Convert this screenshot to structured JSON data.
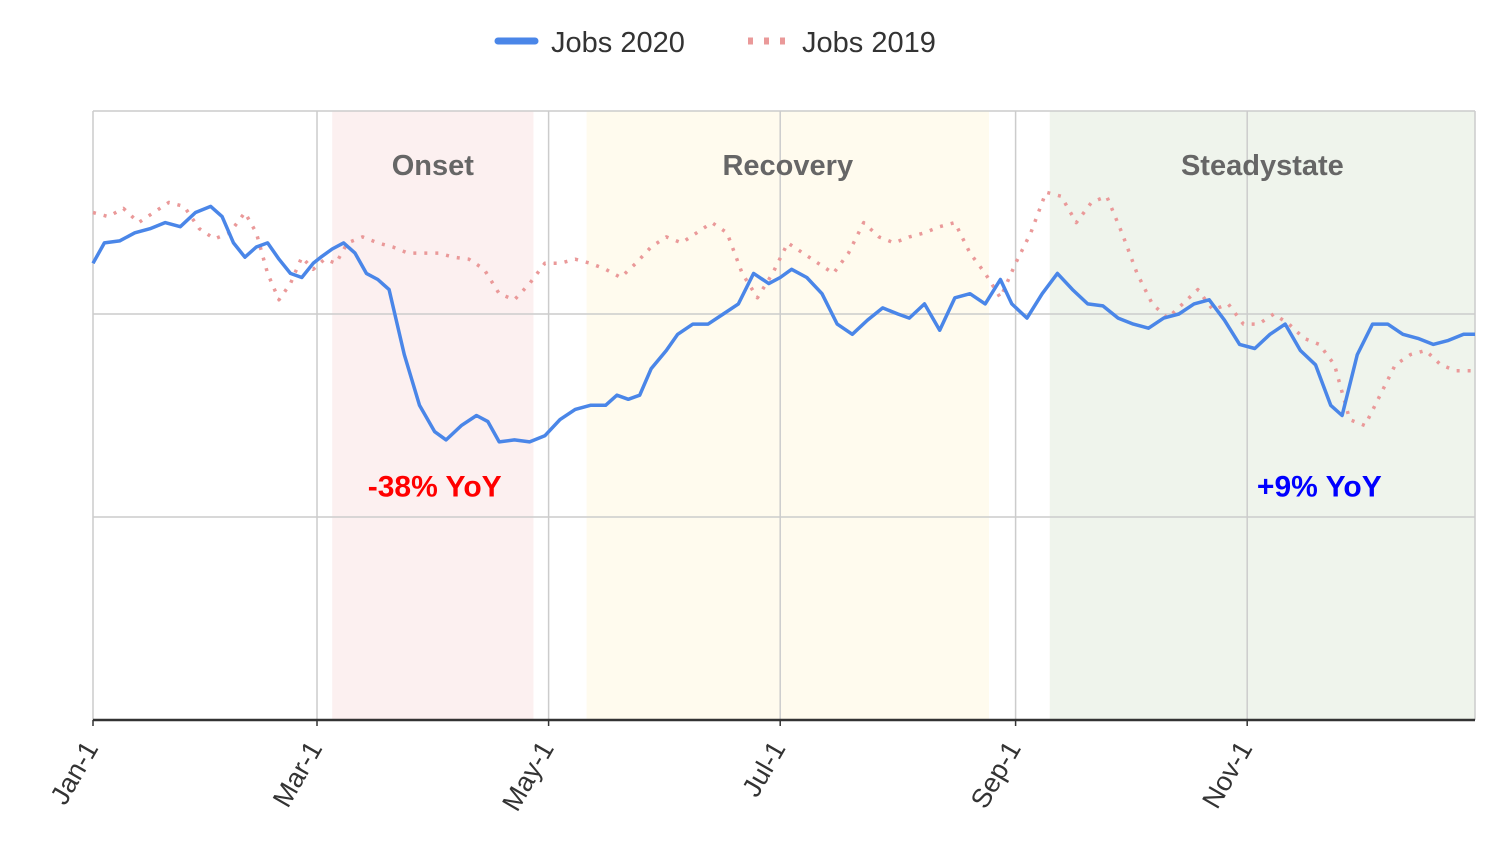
{
  "chart_data": {
    "type": "line",
    "title": "",
    "xlabel": "",
    "ylabel": "",
    "x_range": [
      "Jan-1",
      "Dec-31"
    ],
    "y_range": [
      0,
      3
    ],
    "x_ticks": [
      "Jan-1",
      "Mar-1",
      "May-1",
      "Jul-1",
      "Sep-1",
      "Nov-1"
    ],
    "y_ticks": [],
    "grid": true,
    "legend": "top-center",
    "bands": [
      {
        "label": "Onset",
        "start": "Mar-5",
        "end": "Apr-27",
        "color": "#fcf0f0"
      },
      {
        "label": "Recovery",
        "start": "May-11",
        "end": "Aug-25",
        "color": "#fffbee"
      },
      {
        "label": "Steadystate",
        "start": "Sep-10",
        "end": "Dec-31",
        "color": "#eff4ec"
      }
    ],
    "annotations": [
      {
        "text": "-38% YoY",
        "x": "Apr-1",
        "y": 1.1,
        "color": "#ff0000"
      },
      {
        "text": "+9% YoY",
        "x": "Nov-20",
        "y": 1.1,
        "color": "#0000ff"
      }
    ],
    "series": [
      {
        "name": "Jobs 2020",
        "style": "solid",
        "color": "#4a86e8",
        "points": [
          [
            "Jan-1",
            2.25
          ],
          [
            "Jan-4",
            2.35
          ],
          [
            "Jan-8",
            2.36
          ],
          [
            "Jan-12",
            2.4
          ],
          [
            "Jan-16",
            2.42
          ],
          [
            "Jan-20",
            2.45
          ],
          [
            "Jan-24",
            2.43
          ],
          [
            "Jan-28",
            2.5
          ],
          [
            "Feb-1",
            2.53
          ],
          [
            "Feb-4",
            2.48
          ],
          [
            "Feb-7",
            2.35
          ],
          [
            "Feb-10",
            2.28
          ],
          [
            "Feb-13",
            2.33
          ],
          [
            "Feb-16",
            2.35
          ],
          [
            "Feb-19",
            2.27
          ],
          [
            "Feb-22",
            2.2
          ],
          [
            "Feb-25",
            2.18
          ],
          [
            "Feb-28",
            2.25
          ],
          [
            "Mar-2",
            2.28
          ],
          [
            "Mar-5",
            2.32
          ],
          [
            "Mar-8",
            2.35
          ],
          [
            "Mar-11",
            2.3
          ],
          [
            "Mar-14",
            2.2
          ],
          [
            "Mar-17",
            2.17
          ],
          [
            "Mar-20",
            2.12
          ],
          [
            "Mar-24",
            1.8
          ],
          [
            "Mar-28",
            1.55
          ],
          [
            "Apr-1",
            1.42
          ],
          [
            "Apr-4",
            1.38
          ],
          [
            "Apr-8",
            1.45
          ],
          [
            "Apr-12",
            1.5
          ],
          [
            "Apr-15",
            1.47
          ],
          [
            "Apr-18",
            1.37
          ],
          [
            "Apr-22",
            1.38
          ],
          [
            "Apr-26",
            1.37
          ],
          [
            "Apr-30",
            1.4
          ],
          [
            "May-4",
            1.48
          ],
          [
            "May-8",
            1.53
          ],
          [
            "May-12",
            1.55
          ],
          [
            "May-16",
            1.55
          ],
          [
            "May-19",
            1.6
          ],
          [
            "May-22",
            1.58
          ],
          [
            "May-25",
            1.6
          ],
          [
            "May-28",
            1.73
          ],
          [
            "Jun-1",
            1.82
          ],
          [
            "Jun-4",
            1.9
          ],
          [
            "Jun-8",
            1.95
          ],
          [
            "Jun-12",
            1.95
          ],
          [
            "Jun-16",
            2.0
          ],
          [
            "Jun-20",
            2.05
          ],
          [
            "Jun-24",
            2.2
          ],
          [
            "Jun-28",
            2.15
          ],
          [
            "Jul-1",
            2.18
          ],
          [
            "Jul-4",
            2.22
          ],
          [
            "Jul-8",
            2.18
          ],
          [
            "Jul-12",
            2.1
          ],
          [
            "Jul-16",
            1.95
          ],
          [
            "Jul-20",
            1.9
          ],
          [
            "Jul-24",
            1.97
          ],
          [
            "Jul-28",
            2.03
          ],
          [
            "Aug-1",
            2.0
          ],
          [
            "Aug-4",
            1.98
          ],
          [
            "Aug-8",
            2.05
          ],
          [
            "Aug-12",
            1.92
          ],
          [
            "Aug-16",
            2.08
          ],
          [
            "Aug-20",
            2.1
          ],
          [
            "Aug-24",
            2.05
          ],
          [
            "Aug-28",
            2.17
          ],
          [
            "Aug-31",
            2.05
          ],
          [
            "Sep-4",
            1.98
          ],
          [
            "Sep-8",
            2.1
          ],
          [
            "Sep-12",
            2.2
          ],
          [
            "Sep-16",
            2.12
          ],
          [
            "Sep-20",
            2.05
          ],
          [
            "Sep-24",
            2.04
          ],
          [
            "Sep-28",
            1.98
          ],
          [
            "Oct-2",
            1.95
          ],
          [
            "Oct-6",
            1.93
          ],
          [
            "Oct-10",
            1.98
          ],
          [
            "Oct-14",
            2.0
          ],
          [
            "Oct-18",
            2.05
          ],
          [
            "Oct-22",
            2.07
          ],
          [
            "Oct-26",
            1.97
          ],
          [
            "Oct-30",
            1.85
          ],
          [
            "Nov-3",
            1.83
          ],
          [
            "Nov-7",
            1.9
          ],
          [
            "Nov-11",
            1.95
          ],
          [
            "Nov-15",
            1.82
          ],
          [
            "Nov-19",
            1.75
          ],
          [
            "Nov-23",
            1.55
          ],
          [
            "Nov-26",
            1.5
          ],
          [
            "Nov-30",
            1.8
          ],
          [
            "Dec-4",
            1.95
          ],
          [
            "Dec-8",
            1.95
          ],
          [
            "Dec-12",
            1.9
          ],
          [
            "Dec-16",
            1.88
          ],
          [
            "Dec-20",
            1.85
          ],
          [
            "Dec-24",
            1.87
          ],
          [
            "Dec-28",
            1.9
          ],
          [
            "Dec-31",
            1.9
          ]
        ]
      },
      {
        "name": "Jobs 2019",
        "style": "dotted",
        "color": "#ea9999",
        "points": [
          [
            "Jan-1",
            2.5
          ],
          [
            "Jan-5",
            2.48
          ],
          [
            "Jan-9",
            2.52
          ],
          [
            "Jan-13",
            2.45
          ],
          [
            "Jan-17",
            2.5
          ],
          [
            "Jan-21",
            2.55
          ],
          [
            "Jan-25",
            2.53
          ],
          [
            "Jan-29",
            2.42
          ],
          [
            "Feb-2",
            2.37
          ],
          [
            "Feb-6",
            2.4
          ],
          [
            "Feb-10",
            2.5
          ],
          [
            "Feb-13",
            2.4
          ],
          [
            "Feb-16",
            2.2
          ],
          [
            "Feb-19",
            2.07
          ],
          [
            "Feb-22",
            2.15
          ],
          [
            "Feb-25",
            2.28
          ],
          [
            "Feb-28",
            2.22
          ],
          [
            "Mar-3",
            2.27
          ],
          [
            "Mar-6",
            2.25
          ],
          [
            "Mar-9",
            2.35
          ],
          [
            "Mar-13",
            2.38
          ],
          [
            "Mar-17",
            2.35
          ],
          [
            "Mar-21",
            2.33
          ],
          [
            "Mar-25",
            2.3
          ],
          [
            "Mar-29",
            2.3
          ],
          [
            "Apr-2",
            2.3
          ],
          [
            "Apr-6",
            2.28
          ],
          [
            "Apr-10",
            2.27
          ],
          [
            "Apr-14",
            2.22
          ],
          [
            "Apr-18",
            2.1
          ],
          [
            "Apr-22",
            2.07
          ],
          [
            "Apr-26",
            2.15
          ],
          [
            "Apr-30",
            2.25
          ],
          [
            "May-4",
            2.25
          ],
          [
            "May-8",
            2.27
          ],
          [
            "May-12",
            2.25
          ],
          [
            "May-16",
            2.22
          ],
          [
            "May-20",
            2.18
          ],
          [
            "May-24",
            2.25
          ],
          [
            "May-28",
            2.33
          ],
          [
            "Jun-1",
            2.38
          ],
          [
            "Jun-5",
            2.35
          ],
          [
            "Jun-9",
            2.4
          ],
          [
            "Jun-13",
            2.45
          ],
          [
            "Jun-17",
            2.4
          ],
          [
            "Jun-21",
            2.2
          ],
          [
            "Jun-25",
            2.08
          ],
          [
            "Jun-29",
            2.2
          ],
          [
            "Jul-3",
            2.35
          ],
          [
            "Jul-7",
            2.3
          ],
          [
            "Jul-11",
            2.25
          ],
          [
            "Jul-15",
            2.2
          ],
          [
            "Jul-19",
            2.3
          ],
          [
            "Jul-23",
            2.45
          ],
          [
            "Jul-27",
            2.38
          ],
          [
            "Jul-31",
            2.35
          ],
          [
            "Aug-4",
            2.38
          ],
          [
            "Aug-8",
            2.4
          ],
          [
            "Aug-12",
            2.43
          ],
          [
            "Aug-16",
            2.45
          ],
          [
            "Aug-20",
            2.3
          ],
          [
            "Aug-24",
            2.2
          ],
          [
            "Aug-28",
            2.08
          ],
          [
            "Sep-1",
            2.25
          ],
          [
            "Sep-5",
            2.4
          ],
          [
            "Sep-9",
            2.6
          ],
          [
            "Sep-13",
            2.58
          ],
          [
            "Sep-17",
            2.45
          ],
          [
            "Sep-21",
            2.55
          ],
          [
            "Sep-25",
            2.58
          ],
          [
            "Sep-29",
            2.4
          ],
          [
            "Oct-3",
            2.2
          ],
          [
            "Oct-7",
            2.05
          ],
          [
            "Oct-11",
            1.98
          ],
          [
            "Oct-15",
            2.05
          ],
          [
            "Oct-19",
            2.12
          ],
          [
            "Oct-23",
            2.02
          ],
          [
            "Oct-27",
            2.05
          ],
          [
            "Oct-31",
            1.95
          ],
          [
            "Nov-4",
            1.95
          ],
          [
            "Nov-8",
            2.0
          ],
          [
            "Nov-12",
            1.95
          ],
          [
            "Nov-16",
            1.88
          ],
          [
            "Nov-20",
            1.85
          ],
          [
            "Nov-24",
            1.75
          ],
          [
            "Nov-28",
            1.48
          ],
          [
            "Dec-2",
            1.45
          ],
          [
            "Dec-6",
            1.6
          ],
          [
            "Dec-10",
            1.75
          ],
          [
            "Dec-14",
            1.8
          ],
          [
            "Dec-18",
            1.82
          ],
          [
            "Dec-22",
            1.75
          ],
          [
            "Dec-26",
            1.72
          ],
          [
            "Dec-31",
            1.72
          ]
        ]
      }
    ]
  }
}
